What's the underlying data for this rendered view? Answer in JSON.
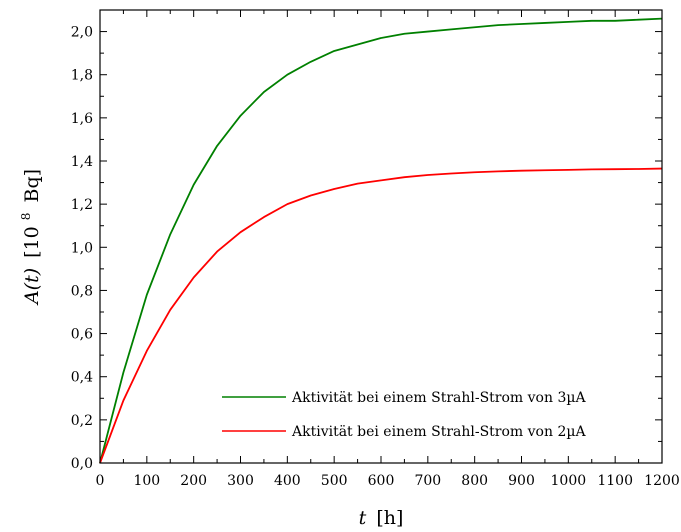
{
  "chart_data": {
    "type": "line",
    "xlabel_var": "t",
    "xlabel_unit": "[h]",
    "ylabel_var": "A(t)",
    "ylabel_unit_pre": "[10",
    "ylabel_exp": "8",
    "ylabel_unit_post": "Bq]",
    "xlim": [
      0,
      1200
    ],
    "ylim": [
      0.0,
      2.1
    ],
    "x_ticks": [
      "0",
      "100",
      "200",
      "300",
      "400",
      "500",
      "600",
      "700",
      "800",
      "900",
      "1000",
      "1100",
      "1200"
    ],
    "y_ticks": [
      "0,0",
      "0,2",
      "0,4",
      "0,6",
      "0,8",
      "1,0",
      "1,2",
      "1,4",
      "1,6",
      "1,8",
      "2,0"
    ],
    "grid": false,
    "legend_position": "bottom-right",
    "series": [
      {
        "name": "Aktivität bei einem Strahl-Strom von 3µA",
        "color": "#008000",
        "x": [
          0,
          50,
          100,
          150,
          200,
          250,
          300,
          350,
          400,
          450,
          500,
          550,
          600,
          650,
          700,
          750,
          800,
          850,
          900,
          950,
          1000,
          1050,
          1100,
          1150,
          1200
        ],
        "values": [
          0.0,
          0.42,
          0.78,
          1.06,
          1.29,
          1.47,
          1.61,
          1.72,
          1.8,
          1.86,
          1.91,
          1.94,
          1.97,
          1.99,
          2.0,
          2.01,
          2.02,
          2.03,
          2.035,
          2.04,
          2.045,
          2.05,
          2.05,
          2.055,
          2.06
        ]
      },
      {
        "name": "Aktivität bei einem Strahl-Strom von 2µA",
        "color": "#ff0000",
        "x": [
          0,
          50,
          100,
          150,
          200,
          250,
          300,
          350,
          400,
          450,
          500,
          550,
          600,
          650,
          700,
          750,
          800,
          850,
          900,
          950,
          1000,
          1050,
          1100,
          1150,
          1200
        ],
        "values": [
          0.0,
          0.29,
          0.52,
          0.71,
          0.86,
          0.98,
          1.07,
          1.14,
          1.2,
          1.24,
          1.27,
          1.295,
          1.31,
          1.325,
          1.335,
          1.342,
          1.348,
          1.352,
          1.355,
          1.357,
          1.359,
          1.361,
          1.362,
          1.363,
          1.365
        ]
      }
    ]
  }
}
